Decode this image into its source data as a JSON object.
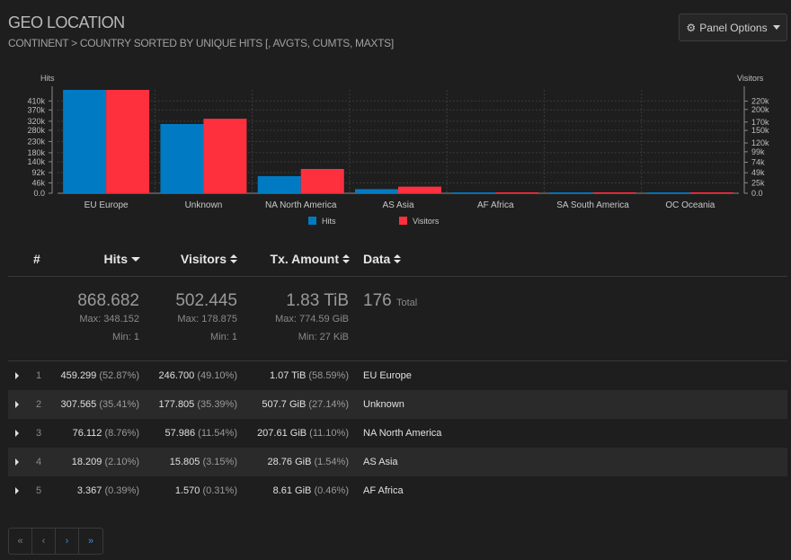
{
  "panel": {
    "title": "GEO LOCATION",
    "subtitle": "CONTINENT > COUNTRY SORTED BY UNIQUE HITS [, AVGTS, CUMTS, MAXTS]",
    "options_label": "Panel Options",
    "options_icon": "gear-icon"
  },
  "colors": {
    "hits": "#007bc3",
    "visitors": "#ff303e",
    "background": "#1e1e1e"
  },
  "chart_data": {
    "type": "bar",
    "categories": [
      "EU Europe",
      "Unknown",
      "NA North America",
      "AS Asia",
      "AF Africa",
      "SA South America",
      "OC Oceania"
    ],
    "series": [
      {
        "name": "Hits",
        "axis": "left",
        "values": [
          459299,
          307565,
          76112,
          18209,
          3367,
          1000,
          300
        ]
      },
      {
        "name": "Visitors",
        "axis": "right",
        "values": [
          246700,
          177805,
          57986,
          15805,
          1570,
          800,
          500
        ]
      }
    ],
    "left_axis": {
      "label": "Hits",
      "ticks": [
        "0.0",
        "46k",
        "92k",
        "140k",
        "180k",
        "230k",
        "280k",
        "320k",
        "370k",
        "410k"
      ],
      "tick_values": [
        0,
        46000,
        92000,
        140000,
        180000,
        230000,
        280000,
        320000,
        370000,
        410000
      ],
      "ylim": [
        0,
        459299
      ]
    },
    "right_axis": {
      "label": "Visitors",
      "ticks": [
        "0.0",
        "25k",
        "49k",
        "74k",
        "99k",
        "120k",
        "150k",
        "170k",
        "200k",
        "220k"
      ],
      "tick_values": [
        0,
        25000,
        49000,
        74000,
        99000,
        120000,
        150000,
        170000,
        200000,
        220000
      ],
      "ylim": [
        0,
        246700
      ]
    },
    "legend": [
      "Hits",
      "Visitors"
    ],
    "legend_position": "bottom",
    "grid": true
  },
  "table": {
    "headers": {
      "index": "#",
      "hits": "Hits",
      "visitors": "Visitors",
      "tx": "Tx. Amount",
      "data": "Data"
    },
    "summary": {
      "hits_total": "868.682",
      "hits_max": "Max: 348.152",
      "hits_min": "Min: 1",
      "visitors_total": "502.445",
      "visitors_max": "Max: 178.875",
      "visitors_min": "Min: 1",
      "tx_total": "1.83 TiB",
      "tx_max": "Max: 774.59 GiB",
      "tx_min": "Min: 27 KiB",
      "data_total": "176",
      "data_total_label": "Total"
    },
    "rows": [
      {
        "index": "1",
        "hits": "459.299",
        "hits_pct": "(52.87%)",
        "visitors": "246.700",
        "visitors_pct": "(49.10%)",
        "tx": "1.07 TiB",
        "tx_pct": "(58.59%)",
        "data": "EU Europe"
      },
      {
        "index": "2",
        "hits": "307.565",
        "hits_pct": "(35.41%)",
        "visitors": "177.805",
        "visitors_pct": "(35.39%)",
        "tx": "507.7 GiB",
        "tx_pct": "(27.14%)",
        "data": "Unknown"
      },
      {
        "index": "3",
        "hits": "76.112",
        "hits_pct": "(8.76%)",
        "visitors": "57.986",
        "visitors_pct": "(11.54%)",
        "tx": "207.61 GiB",
        "tx_pct": "(11.10%)",
        "data": "NA North America"
      },
      {
        "index": "4",
        "hits": "18.209",
        "hits_pct": "(2.10%)",
        "visitors": "15.805",
        "visitors_pct": "(3.15%)",
        "tx": "28.76 GiB",
        "tx_pct": "(1.54%)",
        "data": "AS Asia"
      },
      {
        "index": "5",
        "hits": "3.367",
        "hits_pct": "(0.39%)",
        "visitors": "1.570",
        "visitors_pct": "(0.31%)",
        "tx": "8.61 GiB",
        "tx_pct": "(0.46%)",
        "data": "AF Africa"
      }
    ]
  },
  "pager": {
    "first": "«",
    "prev": "‹",
    "next": "›",
    "last": "»"
  }
}
